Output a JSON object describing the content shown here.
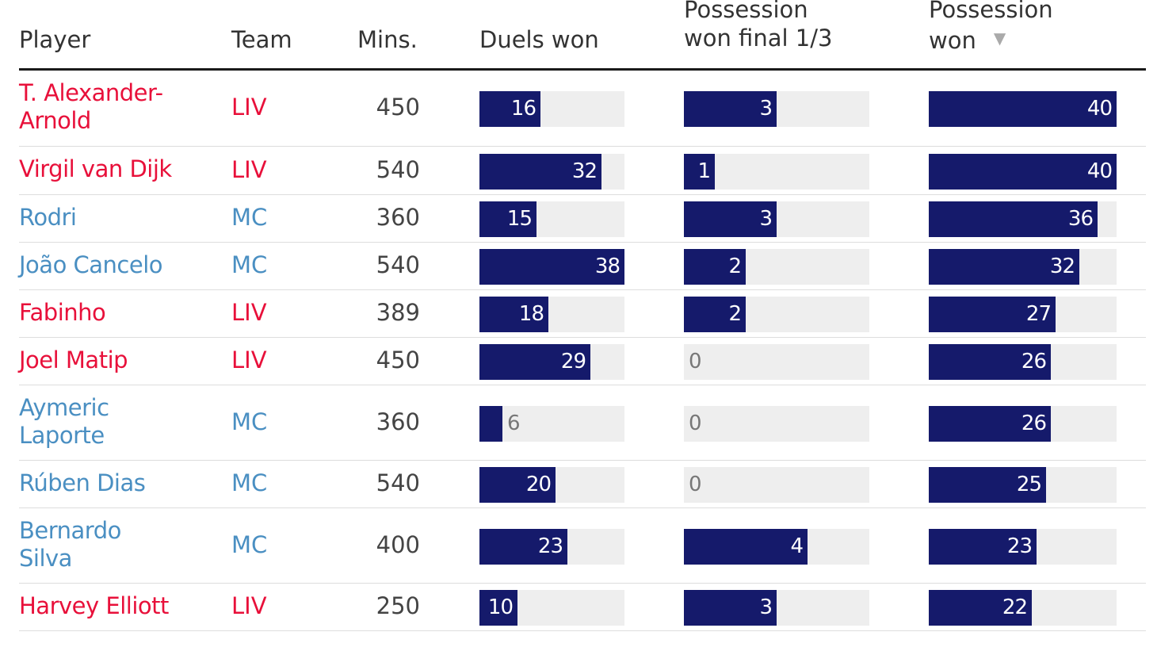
{
  "chart_data": {
    "type": "table",
    "columns": [
      {
        "key": "player",
        "label": "Player"
      },
      {
        "key": "team",
        "label": "Team"
      },
      {
        "key": "mins",
        "label": "Mins."
      },
      {
        "key": "duels",
        "label": "Duels won"
      },
      {
        "key": "poss_final",
        "label_lines": [
          "Possession",
          "won final 1/3"
        ]
      },
      {
        "key": "poss",
        "label_lines": [
          "Possession",
          "won"
        ],
        "sorted": "descending"
      }
    ],
    "bar_max": {
      "duels": 38,
      "poss_final": 6,
      "poss": 40
    },
    "rows": [
      {
        "player_lines": [
          "T. Alexander-",
          "Arnold"
        ],
        "team": "LIV",
        "mins": 450,
        "duels": 16,
        "poss_final": 3,
        "poss": 40
      },
      {
        "player_lines": [
          "Virgil van Dijk"
        ],
        "team": "LIV",
        "mins": 540,
        "duels": 32,
        "poss_final": 1,
        "poss": 40
      },
      {
        "player_lines": [
          "Rodri"
        ],
        "team": "MC",
        "mins": 360,
        "duels": 15,
        "poss_final": 3,
        "poss": 36
      },
      {
        "player_lines": [
          "João Cancelo"
        ],
        "team": "MC",
        "mins": 540,
        "duels": 38,
        "poss_final": 2,
        "poss": 32
      },
      {
        "player_lines": [
          "Fabinho"
        ],
        "team": "LIV",
        "mins": 389,
        "duels": 18,
        "poss_final": 2,
        "poss": 27
      },
      {
        "player_lines": [
          "Joel Matip"
        ],
        "team": "LIV",
        "mins": 450,
        "duels": 29,
        "poss_final": 0,
        "poss": 26
      },
      {
        "player_lines": [
          "Aymeric",
          "Laporte"
        ],
        "team": "MC",
        "mins": 360,
        "duels": 6,
        "poss_final": 0,
        "poss": 26
      },
      {
        "player_lines": [
          "Rúben Dias"
        ],
        "team": "MC",
        "mins": 540,
        "duels": 20,
        "poss_final": 0,
        "poss": 25
      },
      {
        "player_lines": [
          "Bernardo",
          "Silva"
        ],
        "team": "MC",
        "mins": 400,
        "duels": 23,
        "poss_final": 4,
        "poss": 23
      },
      {
        "player_lines": [
          "Harvey Elliott"
        ],
        "team": "LIV",
        "mins": 250,
        "duels": 10,
        "poss_final": 3,
        "poss": 22
      }
    ],
    "colors": {
      "LIV": "#e8103a",
      "MC": "#4a8fc2",
      "bar": "#151a6b",
      "track": "#eeeeee"
    }
  }
}
